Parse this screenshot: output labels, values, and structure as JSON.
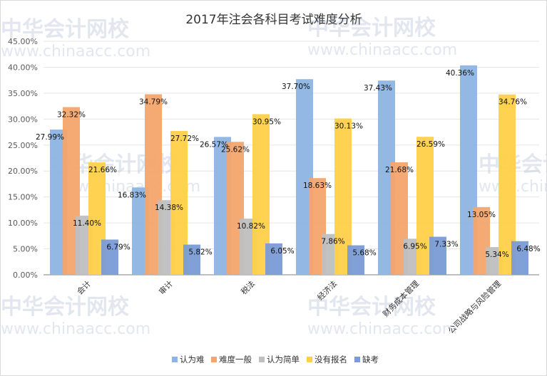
{
  "chart_data": {
    "type": "bar",
    "title": "2017年注会各科目考试难度分析",
    "categories": [
      "会计",
      "审计",
      "税法",
      "经济法",
      "财务成本管理",
      "公司战略与风险管理"
    ],
    "series": [
      {
        "name": "认为难",
        "color": "#8db4e2",
        "values": [
          27.99,
          16.83,
          26.57,
          37.7,
          37.43,
          40.36
        ]
      },
      {
        "name": "难度一般",
        "color": "#f4a46c",
        "values": [
          32.32,
          34.79,
          25.62,
          18.63,
          21.68,
          13.05
        ]
      },
      {
        "name": "认为简单",
        "color": "#bfbfbf",
        "values": [
          11.4,
          14.38,
          10.82,
          7.86,
          6.95,
          5.34
        ]
      },
      {
        "name": "没有报名",
        "color": "#ffd048",
        "values": [
          21.66,
          27.72,
          30.95,
          30.13,
          26.59,
          34.76
        ]
      },
      {
        "name": "缺考",
        "color": "#7b9bd6",
        "values": [
          6.79,
          5.82,
          6.05,
          5.68,
          7.33,
          6.48
        ]
      }
    ],
    "yticks": [
      "0.00%",
      "5.00%",
      "10.00%",
      "15.00%",
      "20.00%",
      "25.00%",
      "30.00%",
      "35.00%",
      "40.00%",
      "45.00%"
    ],
    "ylim": [
      0,
      45
    ],
    "grid": true,
    "legend": "bottom",
    "watermark": "中华会计网校 www.chinaacc.com"
  }
}
